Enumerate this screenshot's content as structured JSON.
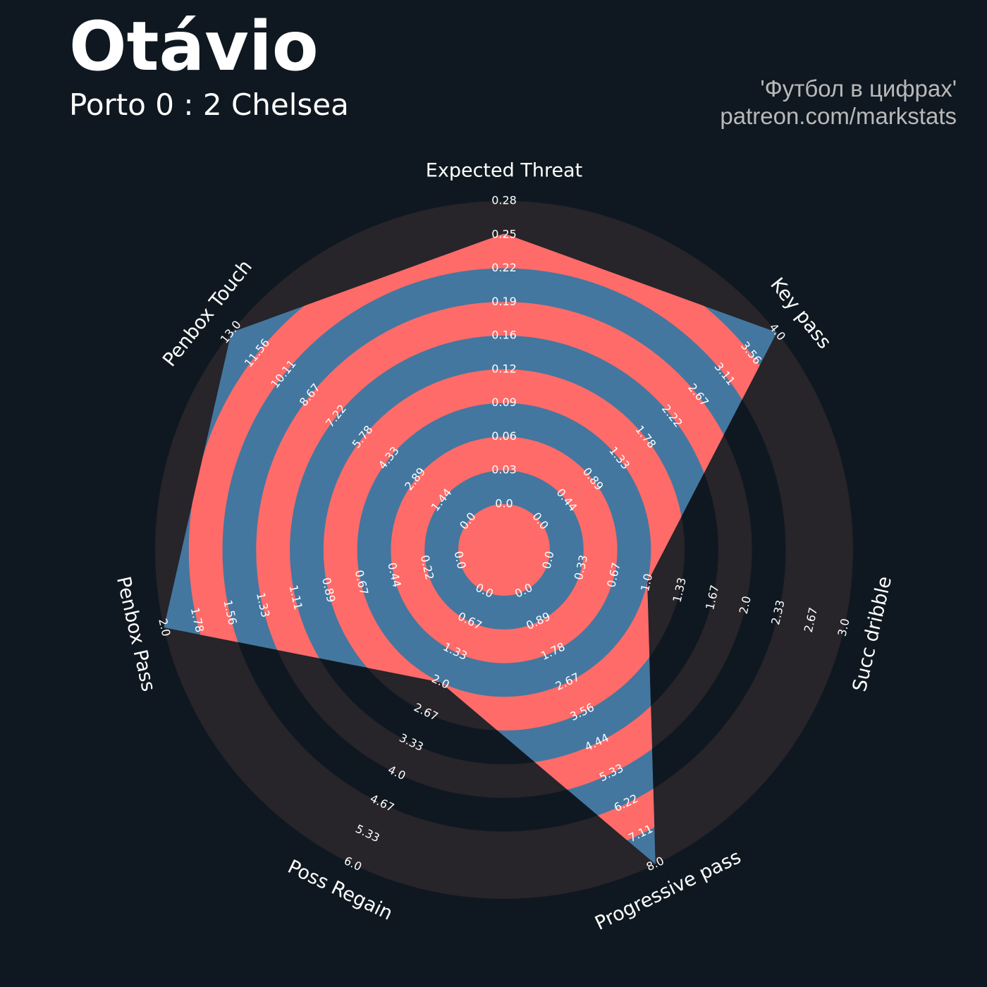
{
  "header": {
    "title": "Otávio",
    "subtitle": "Porto 0 : 2 Chelsea"
  },
  "credit": {
    "line1": "'Футбол в цифрах'",
    "line2": "patreon.com/markstats"
  },
  "colors": {
    "background": "#0f1820",
    "outer_ring": "#27242a",
    "ring_red": "#ff6b68",
    "ring_blue": "#43779f"
  },
  "chart_data": {
    "type": "radar",
    "title": "Otávio",
    "subtitle": "Porto 0 : 2 Chelsea",
    "parameters": [
      {
        "name": "Expected Threat",
        "min": 0.0,
        "max": 0.28,
        "value": 0.25,
        "ticks": [
          "0.0",
          "0.03",
          "0.06",
          "0.09",
          "0.12",
          "0.16",
          "0.19",
          "0.22",
          "0.25",
          "0.28"
        ]
      },
      {
        "name": "Key pass",
        "min": 0.0,
        "max": 4.0,
        "value": 4.0,
        "ticks": [
          "0.0",
          "0.44",
          "0.89",
          "1.33",
          "1.78",
          "2.22",
          "2.67",
          "3.11",
          "3.56",
          "4.0"
        ]
      },
      {
        "name": "Succ dribble",
        "min": 0.0,
        "max": 3.0,
        "value": 1.0,
        "ticks": [
          "0.0",
          "0.33",
          "0.67",
          "1.0",
          "1.33",
          "1.67",
          "2.0",
          "2.33",
          "2.67",
          "3.0"
        ]
      },
      {
        "name": "Progressive pass",
        "min": 0.0,
        "max": 8.0,
        "value": 8.0,
        "ticks": [
          "0.0",
          "0.89",
          "1.78",
          "2.67",
          "3.56",
          "4.44",
          "5.33",
          "6.22",
          "7.11",
          "8.0"
        ]
      },
      {
        "name": "Poss Regain",
        "min": 0.0,
        "max": 6.0,
        "value": 2.0,
        "ticks": [
          "0.0",
          "0.67",
          "1.33",
          "2.0",
          "2.67",
          "3.33",
          "4.0",
          "4.67",
          "5.33",
          "6.0"
        ]
      },
      {
        "name": "Penbox Pass",
        "min": 0.0,
        "max": 2.0,
        "value": 2.0,
        "ticks": [
          "0.0",
          "0.22",
          "0.44",
          "0.67",
          "0.89",
          "1.11",
          "1.33",
          "1.56",
          "1.78",
          "2.0"
        ]
      },
      {
        "name": "Penbox Touch",
        "min": 0.0,
        "max": 13.0,
        "value": 13.0,
        "ticks": [
          "0.0",
          "1.44",
          "2.89",
          "4.33",
          "5.78",
          "7.22",
          "8.67",
          "10.11",
          "11.56",
          "13.0"
        ]
      }
    ]
  }
}
